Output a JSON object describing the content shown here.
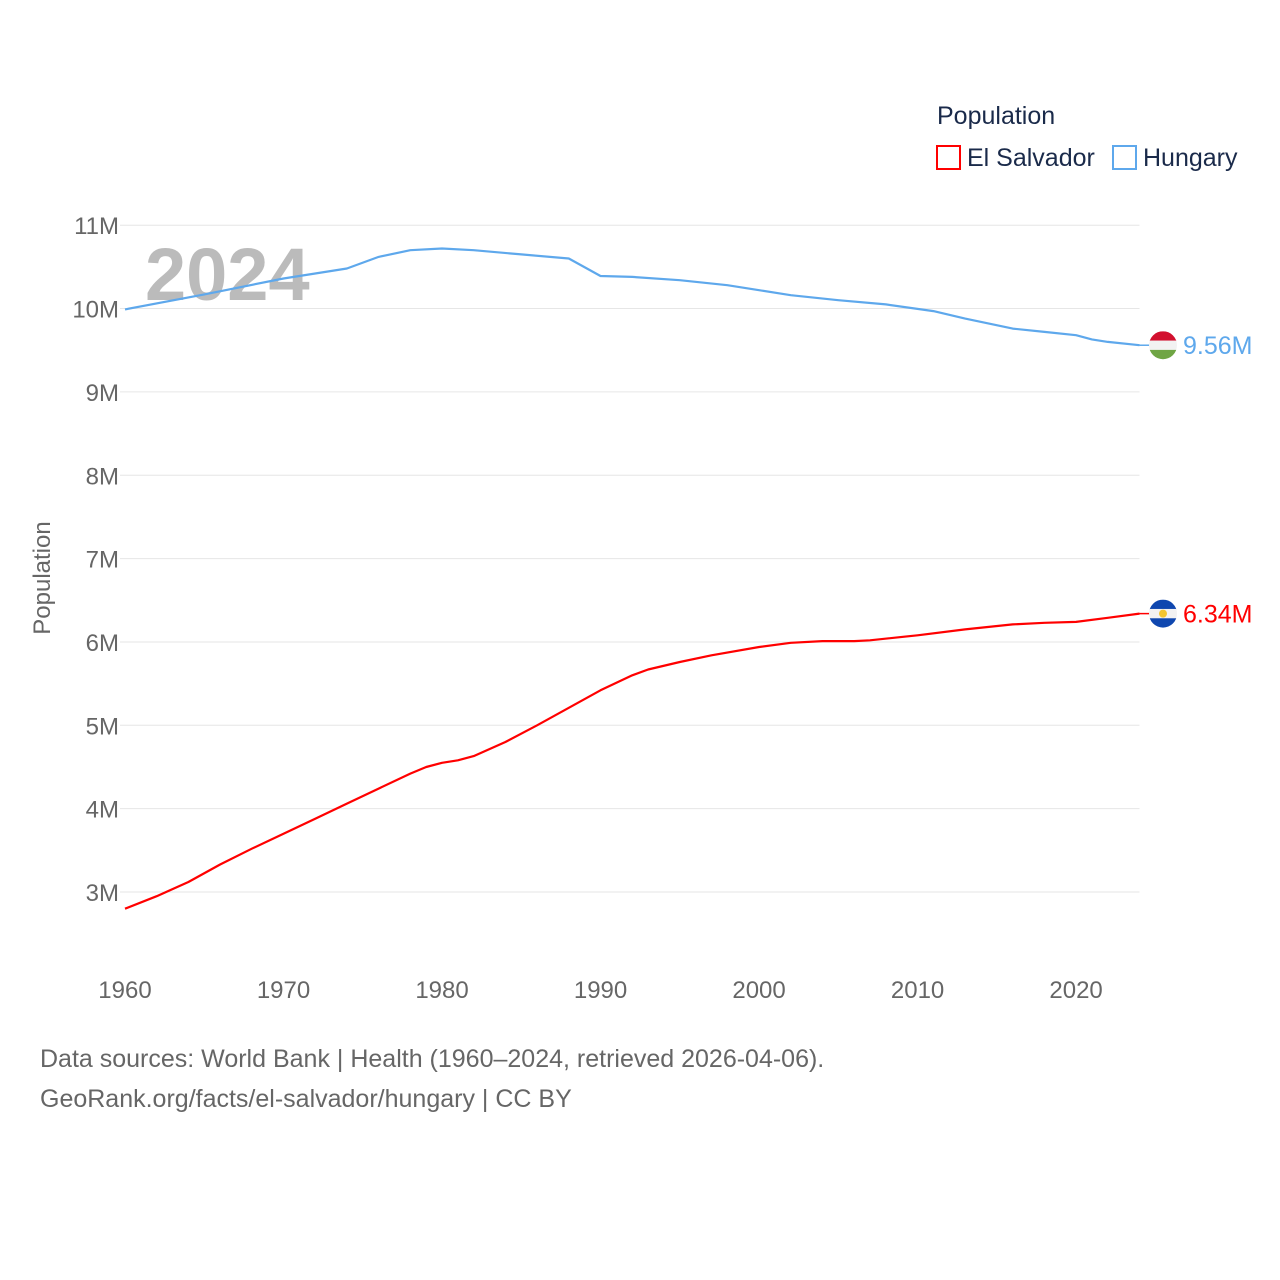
{
  "chart_data": {
    "type": "line",
    "title": "Population",
    "xlabel": "",
    "ylabel": "Population",
    "year_label": "2024",
    "xlim": [
      1960,
      2024
    ],
    "ylim": [
      2.6,
      11
    ],
    "x_ticks": [
      "1960",
      "1970",
      "1980",
      "1990",
      "2000",
      "2010",
      "2020"
    ],
    "y_ticks": [
      "3M",
      "4M",
      "5M",
      "6M",
      "7M",
      "8M",
      "9M",
      "10M",
      "11M"
    ],
    "grid": true,
    "legend_position": "top-right",
    "legend": [
      "El Salvador",
      "Hungary"
    ],
    "series": [
      {
        "name": "El Salvador",
        "color": "#ff0000",
        "end_label": "6.34M",
        "flag": "el-salvador-flag",
        "points": [
          [
            1960,
            2.8
          ],
          [
            1962,
            2.95
          ],
          [
            1964,
            3.12
          ],
          [
            1966,
            3.33
          ],
          [
            1968,
            3.52
          ],
          [
            1970,
            3.7
          ],
          [
            1972,
            3.88
          ],
          [
            1974,
            4.06
          ],
          [
            1976,
            4.24
          ],
          [
            1978,
            4.42
          ],
          [
            1979,
            4.5
          ],
          [
            1980,
            4.55
          ],
          [
            1981,
            4.58
          ],
          [
            1982,
            4.63
          ],
          [
            1984,
            4.8
          ],
          [
            1986,
            5.0
          ],
          [
            1988,
            5.21
          ],
          [
            1990,
            5.42
          ],
          [
            1992,
            5.6
          ],
          [
            1993,
            5.67
          ],
          [
            1995,
            5.76
          ],
          [
            1997,
            5.84
          ],
          [
            2000,
            5.94
          ],
          [
            2002,
            5.99
          ],
          [
            2004,
            6.01
          ],
          [
            2006,
            6.01
          ],
          [
            2007,
            6.02
          ],
          [
            2010,
            6.08
          ],
          [
            2013,
            6.15
          ],
          [
            2016,
            6.21
          ],
          [
            2018,
            6.23
          ],
          [
            2020,
            6.24
          ],
          [
            2022,
            6.29
          ],
          [
            2024,
            6.34
          ]
        ]
      },
      {
        "name": "Hungary",
        "color": "#5ea8ec",
        "end_label": "9.56M",
        "flag": "hungary-flag",
        "points": [
          [
            1960,
            9.99
          ],
          [
            1965,
            10.17
          ],
          [
            1970,
            10.36
          ],
          [
            1974,
            10.48
          ],
          [
            1976,
            10.62
          ],
          [
            1978,
            10.7
          ],
          [
            1980,
            10.72
          ],
          [
            1982,
            10.7
          ],
          [
            1985,
            10.65
          ],
          [
            1988,
            10.6
          ],
          [
            1990,
            10.39
          ],
          [
            1992,
            10.38
          ],
          [
            1995,
            10.34
          ],
          [
            1998,
            10.28
          ],
          [
            2000,
            10.22
          ],
          [
            2002,
            10.16
          ],
          [
            2005,
            10.1
          ],
          [
            2008,
            10.05
          ],
          [
            2011,
            9.97
          ],
          [
            2013,
            9.88
          ],
          [
            2016,
            9.76
          ],
          [
            2018,
            9.72
          ],
          [
            2020,
            9.68
          ],
          [
            2021,
            9.63
          ],
          [
            2022,
            9.6
          ],
          [
            2024,
            9.56
          ]
        ]
      }
    ]
  },
  "footer": {
    "line1": "Data sources: World Bank | Health (1960–2024, retrieved 2026-04-06).",
    "line2": "GeoRank.org/facts/el-salvador/hungary | CC BY"
  }
}
